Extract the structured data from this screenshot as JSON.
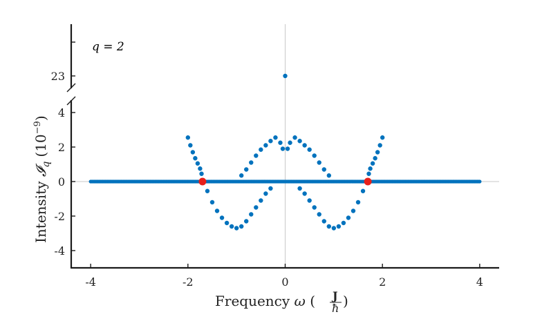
{
  "chart_data": {
    "type": "scatter",
    "annotation": "q = 2",
    "xlabel": "Frequency ω (J/ħ)",
    "xlabel_parts": {
      "main": "Frequency ",
      "var": "ω",
      "num": "J",
      "den": "ħ"
    },
    "ylabel": "Intensity 𝓘q (10⁻⁹)",
    "ylabel_parts": {
      "main": "Intensity ",
      "sym": "𝓘",
      "sub": "q",
      "unit_base": "(10",
      "unit_exp": "−9",
      "unit_close": ")"
    },
    "xlim": [
      -4.4,
      4.4
    ],
    "ylim": [
      -5,
      5
    ],
    "x_ticks": [
      -4,
      -2,
      0,
      2,
      4
    ],
    "x_tick_labels": [
      "-4",
      "-2",
      "0",
      "2",
      "4"
    ],
    "y_ticks": [
      -4,
      -2,
      0,
      2,
      4
    ],
    "y_tick_labels": [
      "-4",
      "-2",
      "0",
      "2",
      "4"
    ],
    "broken_axis": {
      "upper_ticks": [
        23
      ],
      "upper_tick_labels": [
        "23"
      ]
    },
    "grid": false,
    "reference_lines": {
      "x": 0,
      "y": 0
    },
    "colors": {
      "points": "#0072BD",
      "highlight": "#E8201A",
      "axis": "#1a1a1a",
      "refline": "#c8c8c8"
    },
    "series": [
      {
        "marker": "dot",
        "description_points": [
          {
            "x": 0,
            "y": 23
          },
          {
            "x": -2.0,
            "y": 2.55
          },
          {
            "x": -1.95,
            "y": 2.1
          },
          {
            "x": -1.9,
            "y": 1.7
          },
          {
            "x": -1.85,
            "y": 1.35
          },
          {
            "x": -1.8,
            "y": 1.05
          },
          {
            "x": -1.75,
            "y": 0.75
          },
          {
            "x": -1.72,
            "y": 0.45
          },
          {
            "x": 1.72,
            "y": 0.45
          },
          {
            "x": 1.75,
            "y": 0.75
          },
          {
            "x": 1.8,
            "y": 1.05
          },
          {
            "x": 1.85,
            "y": 1.35
          },
          {
            "x": 1.9,
            "y": 1.7
          },
          {
            "x": 1.95,
            "y": 2.1
          },
          {
            "x": 2.0,
            "y": 2.55
          },
          {
            "x": -1.6,
            "y": -0.55
          },
          {
            "x": -1.5,
            "y": -1.2
          },
          {
            "x": -1.4,
            "y": -1.7
          },
          {
            "x": -1.3,
            "y": -2.1
          },
          {
            "x": -1.2,
            "y": -2.4
          },
          {
            "x": -1.1,
            "y": -2.6
          },
          {
            "x": -1.0,
            "y": -2.7
          },
          {
            "x": -0.9,
            "y": -2.6
          },
          {
            "x": -0.8,
            "y": -2.3
          },
          {
            "x": -0.7,
            "y": -1.9
          },
          {
            "x": -0.6,
            "y": -1.5
          },
          {
            "x": -0.5,
            "y": -1.1
          },
          {
            "x": -0.4,
            "y": -0.7
          },
          {
            "x": -0.3,
            "y": -0.4
          },
          {
            "x": 0.3,
            "y": -0.4
          },
          {
            "x": 0.4,
            "y": -0.7
          },
          {
            "x": 0.5,
            "y": -1.1
          },
          {
            "x": 0.6,
            "y": -1.5
          },
          {
            "x": 0.7,
            "y": -1.9
          },
          {
            "x": 0.8,
            "y": -2.3
          },
          {
            "x": 0.9,
            "y": -2.6
          },
          {
            "x": 1.0,
            "y": -2.7
          },
          {
            "x": 1.1,
            "y": -2.6
          },
          {
            "x": 1.2,
            "y": -2.4
          },
          {
            "x": 1.3,
            "y": -2.1
          },
          {
            "x": 1.4,
            "y": -1.7
          },
          {
            "x": 1.5,
            "y": -1.2
          },
          {
            "x": 1.6,
            "y": -0.55
          },
          {
            "x": -0.9,
            "y": 0.35
          },
          {
            "x": -0.8,
            "y": 0.7
          },
          {
            "x": -0.7,
            "y": 1.1
          },
          {
            "x": -0.6,
            "y": 1.5
          },
          {
            "x": -0.5,
            "y": 1.85
          },
          {
            "x": -0.4,
            "y": 2.1
          },
          {
            "x": -0.3,
            "y": 2.35
          },
          {
            "x": -0.2,
            "y": 2.55
          },
          {
            "x": -0.1,
            "y": 2.25
          },
          {
            "x": -0.05,
            "y": 1.9
          },
          {
            "x": 0.05,
            "y": 1.9
          },
          {
            "x": 0.1,
            "y": 2.25
          },
          {
            "x": 0.2,
            "y": 2.55
          },
          {
            "x": 0.3,
            "y": 2.35
          },
          {
            "x": 0.4,
            "y": 2.1
          },
          {
            "x": 0.5,
            "y": 1.85
          },
          {
            "x": 0.6,
            "y": 1.5
          },
          {
            "x": 0.7,
            "y": 1.1
          },
          {
            "x": 0.8,
            "y": 0.7
          },
          {
            "x": 0.9,
            "y": 0.35
          }
        ],
        "baseline_band": {
          "x_range": [
            -4,
            4
          ],
          "y": 0
        }
      },
      {
        "marker": "large-dot",
        "points": [
          {
            "x": -1.7,
            "y": 0
          },
          {
            "x": 1.7,
            "y": 0
          }
        ]
      }
    ]
  }
}
